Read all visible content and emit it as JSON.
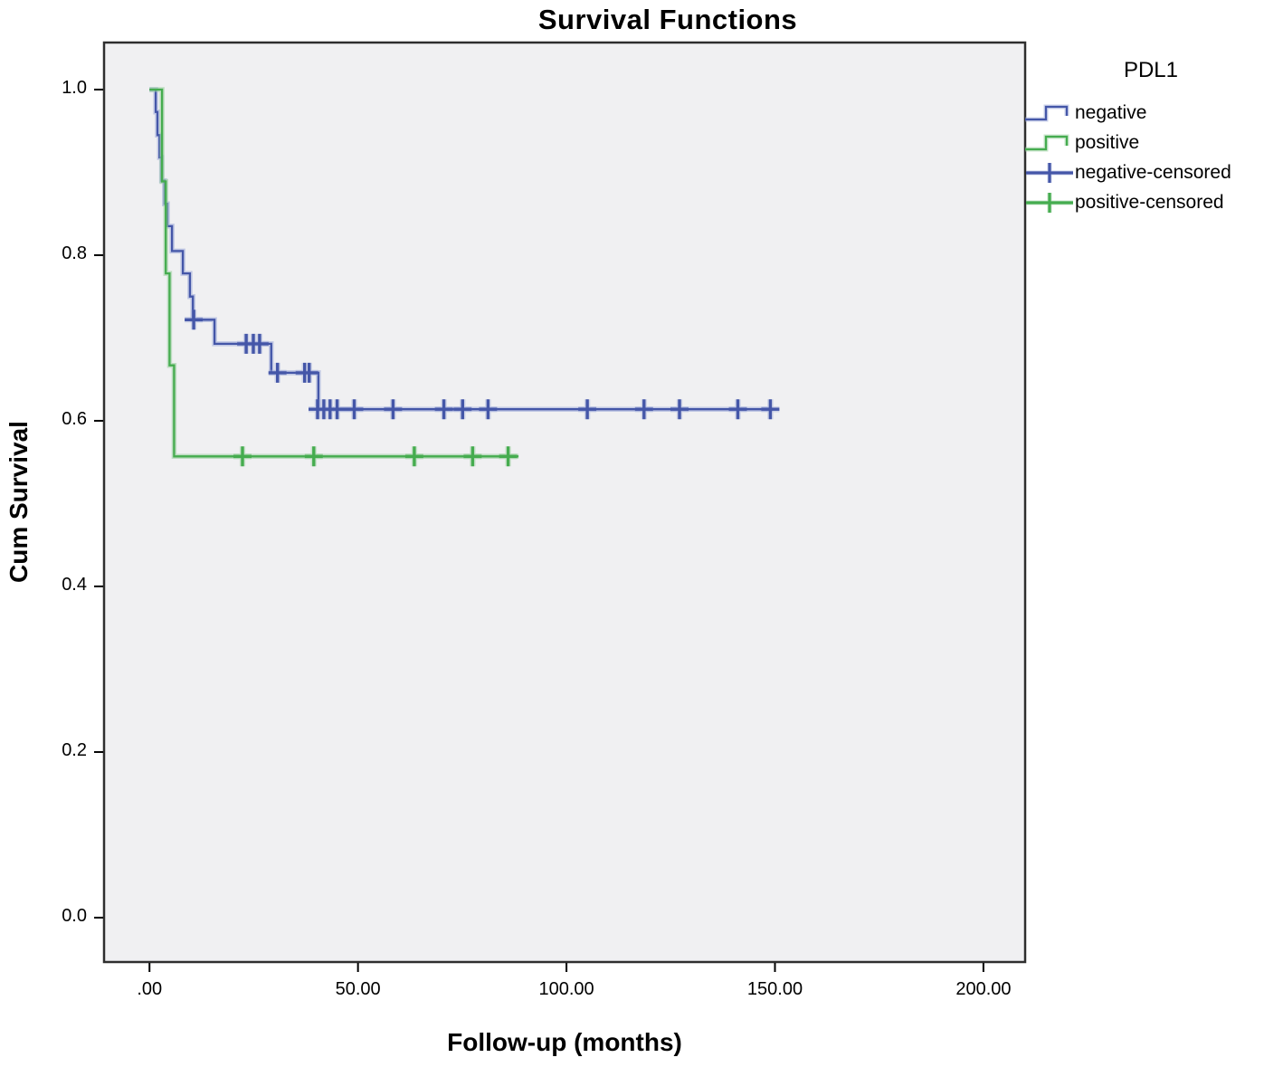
{
  "figure": {
    "title": "Survival Functions"
  },
  "axes": {
    "x": {
      "label": "Follow-up (months)",
      "tick_values": [
        0,
        50,
        100,
        150,
        200
      ],
      "tick_labels": [
        ".00",
        "50.00",
        "100.00",
        "150.00",
        "200.00"
      ]
    },
    "y": {
      "label": "Cum Survival",
      "tick_values": [
        0.0,
        0.2,
        0.4,
        0.6,
        0.8,
        1.0
      ],
      "tick_labels": [
        "0.0",
        "0.2",
        "0.4",
        "0.6",
        "0.8",
        "1.0"
      ]
    }
  },
  "legend": {
    "title": "PDL1",
    "items": [
      {
        "label": "negative",
        "glyph": "step-line",
        "color": "#4456a8",
        "halo": "#9aa8d8"
      },
      {
        "label": "positive",
        "glyph": "step-line",
        "color": "#45ac4f",
        "halo": "#95cd9a"
      },
      {
        "label": "negative-censored",
        "glyph": "plus",
        "color": "#4456a8",
        "halo": "#9aa8d8"
      },
      {
        "label": "positive-censored",
        "glyph": "plus",
        "color": "#45ac4f",
        "halo": "#95cd9a"
      }
    ]
  },
  "colors": {
    "plot_bg": "#f0f0f2",
    "border": "#2e2e2e",
    "tick": "#000000",
    "negative": "#4456a8",
    "positive": "#45ac4f"
  },
  "chart_data": {
    "type": "line",
    "subtype": "kaplan-meier-step",
    "title": "Survival Functions",
    "xlabel": "Follow-up (months)",
    "ylabel": "Cum Survival",
    "xlim": [
      -10.9,
      210
    ],
    "ylim": [
      -0.0536,
      1.0568
    ],
    "grid": false,
    "legend_position": "top-right",
    "series": [
      {
        "name": "negative",
        "color": "#4456a8",
        "halo": "#9aa8d8",
        "steps": [
          [
            0,
            1.0
          ],
          [
            1.5,
            0.973
          ],
          [
            1.9,
            0.945
          ],
          [
            2.4,
            0.918
          ],
          [
            2.9,
            0.89
          ],
          [
            3.6,
            0.862
          ],
          [
            4.3,
            0.835
          ],
          [
            5.4,
            0.805
          ],
          [
            8.0,
            0.778
          ],
          [
            9.7,
            0.75
          ],
          [
            10.4,
            0.722
          ],
          [
            15.6,
            0.693
          ],
          [
            29.2,
            0.658
          ],
          [
            40.5,
            0.614
          ]
        ],
        "end_time": 149.5,
        "censored": [
          [
            10.6,
            0.722
          ],
          [
            23.2,
            0.693
          ],
          [
            24.9,
            0.693
          ],
          [
            26.4,
            0.693
          ],
          [
            30.7,
            0.658
          ],
          [
            37.2,
            0.658
          ],
          [
            38.3,
            0.658
          ],
          [
            40.3,
            0.614
          ],
          [
            41.8,
            0.614
          ],
          [
            43.3,
            0.614
          ],
          [
            45.0,
            0.614
          ],
          [
            49.1,
            0.614
          ],
          [
            58.4,
            0.614
          ],
          [
            70.6,
            0.614
          ],
          [
            75.1,
            0.614
          ],
          [
            81.2,
            0.614
          ],
          [
            105.0,
            0.614
          ],
          [
            118.6,
            0.614
          ],
          [
            127.1,
            0.614
          ],
          [
            141.1,
            0.614
          ],
          [
            148.9,
            0.614
          ]
        ]
      },
      {
        "name": "positive",
        "color": "#45ac4f",
        "halo": "#95cd9a",
        "steps": [
          [
            0,
            1.0
          ],
          [
            3.0,
            0.889
          ],
          [
            3.9,
            0.778
          ],
          [
            4.8,
            0.667
          ],
          [
            5.9,
            0.557
          ]
        ],
        "end_time": 88.5,
        "censored": [
          [
            22.3,
            0.557
          ],
          [
            39.4,
            0.557
          ],
          [
            63.5,
            0.557
          ],
          [
            77.5,
            0.557
          ],
          [
            86.0,
            0.557
          ]
        ]
      }
    ]
  }
}
